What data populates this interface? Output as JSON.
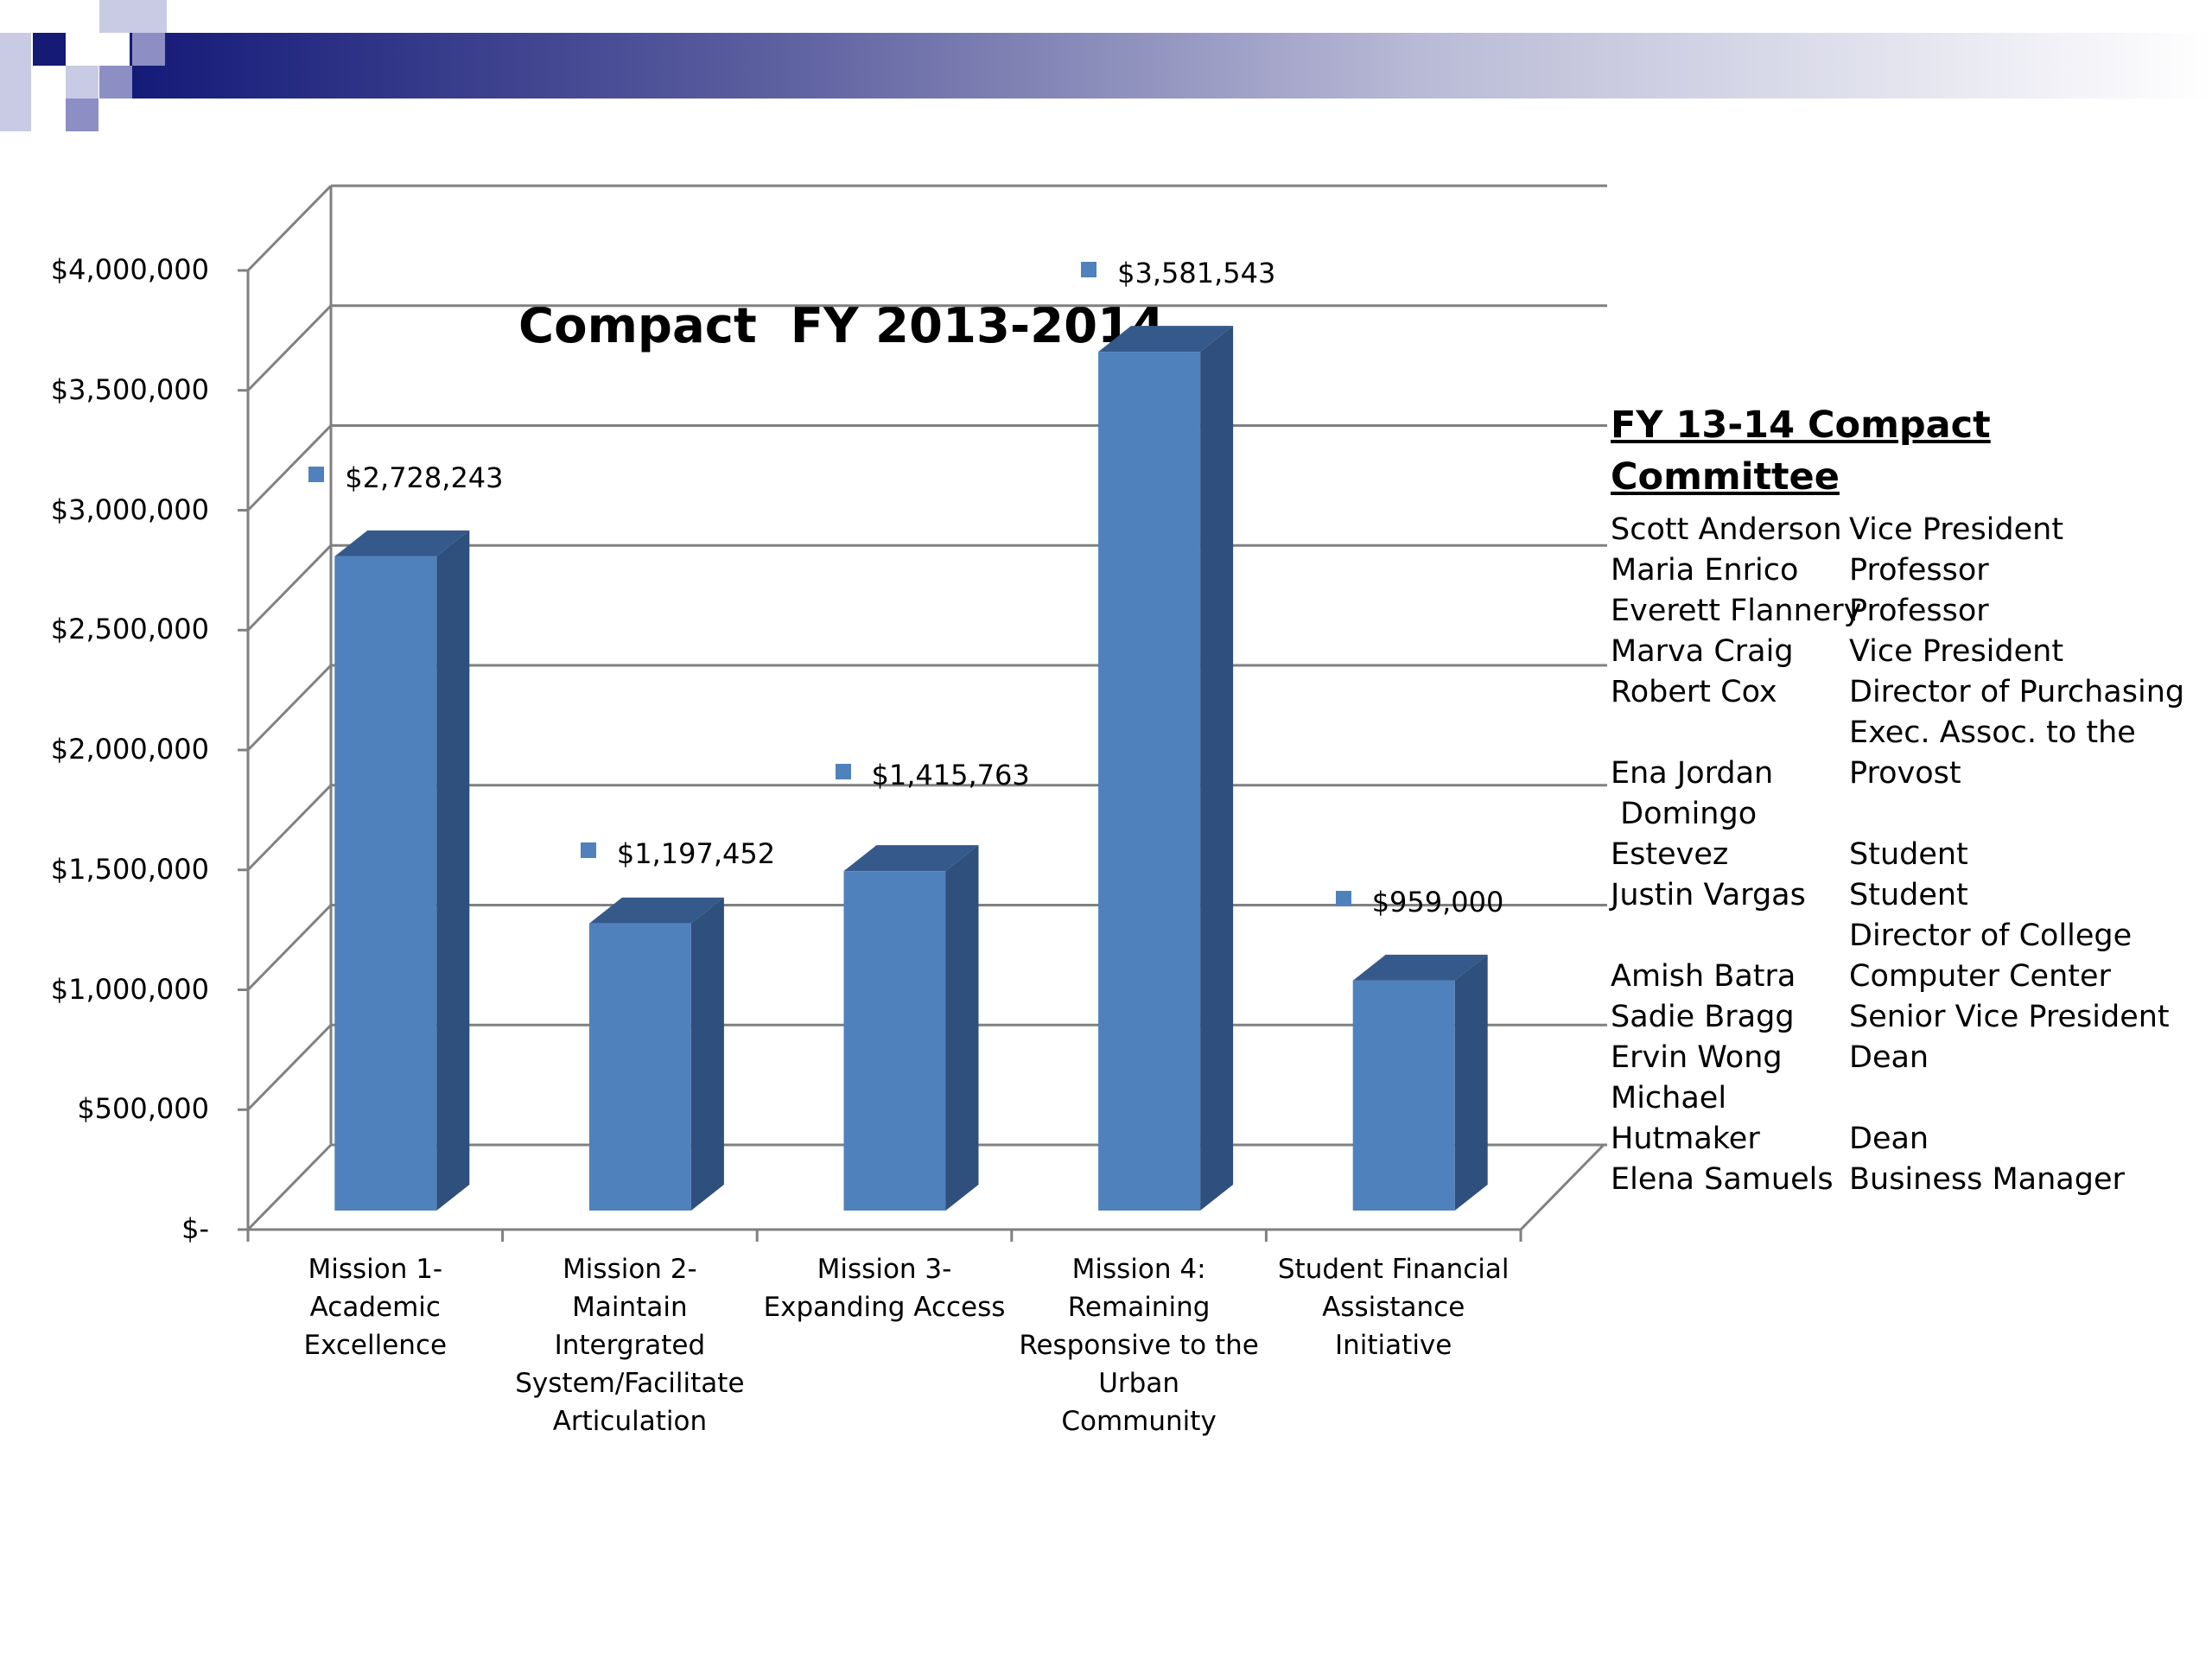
{
  "colors": {
    "banner_dark": "#141a78",
    "banner_light": "#ffffff",
    "square_dark": "#151a75",
    "square_mid": "#8c8ec4",
    "square_light": "#c9cae3",
    "bar_front": "#4f81bd",
    "bar_top": "#35598a",
    "bar_side": "#2f4f7c",
    "grid": "#808080"
  },
  "chart_data": {
    "type": "bar",
    "title": "Compact  FY 2013-2014",
    "categories": [
      "Mission 1- Academic Excellence",
      "Mission 2- Maintain Intergrated System/Facilitate Articulation",
      "Mission 3- Expanding Access",
      "Mission 4: Remaining Responsive to the Urban Community",
      "Student Financial Assistance Initiative"
    ],
    "category_lines": [
      [
        "Mission 1-",
        "Academic",
        "Excellence"
      ],
      [
        "Mission 2-",
        "Maintain",
        "Intergrated",
        "System/Facilitate",
        "Articulation"
      ],
      [
        "Mission 3-",
        "Expanding Access"
      ],
      [
        "Mission 4:",
        "Remaining",
        "Responsive to the",
        "Urban Community"
      ],
      [
        "Student Financial",
        "Assistance",
        "Initiative"
      ]
    ],
    "values": [
      2728243,
      1197452,
      1415763,
      3581543,
      959000
    ],
    "data_labels": [
      "$2,728,243",
      "$1,197,452",
      "$1,415,763",
      "$3,581,543",
      "$959,000"
    ],
    "yticks": [
      0,
      500000,
      1000000,
      1500000,
      2000000,
      2500000,
      3000000,
      3500000,
      4000000
    ],
    "ytick_labels": [
      "$-",
      "$500,000",
      "$1,000,000",
      "$1,500,000",
      "$2,000,000",
      "$2,500,000",
      "$3,000,000",
      "$3,500,000",
      "$4,000,000"
    ],
    "ylim": [
      0,
      4000000
    ],
    "xlabel": "",
    "ylabel": "",
    "grid": true,
    "style": "3d-clustered-column"
  },
  "committee": {
    "title": "FY 13-14 Compact Committee",
    "members": [
      {
        "name": "Scott Anderson",
        "role": "Vice President"
      },
      {
        "name": "Maria Enrico",
        "role": "Professor"
      },
      {
        "name": "Everett Flannery",
        "role": "Professor"
      },
      {
        "name": "Marva Craig",
        "role": "Vice President"
      },
      {
        "name": "Robert Cox",
        "role": "Director of Purchasing"
      },
      {
        "name": "",
        "role": "Exec. Assoc. to the"
      },
      {
        "name": "Ena Jordan",
        "role": "Provost"
      },
      {
        "name": " Domingo",
        "role": ""
      },
      {
        "name": "Estevez",
        "role": "Student"
      },
      {
        "name": "Justin Vargas",
        "role": "Student"
      },
      {
        "name": "",
        "role": "Director of College"
      },
      {
        "name": "Amish Batra",
        "role": "Computer Center"
      },
      {
        "name": "Sadie Bragg",
        "role": "Senior Vice President"
      },
      {
        "name": "Ervin Wong",
        "role": "Dean"
      },
      {
        "name": "Michael",
        "role": ""
      },
      {
        "name": "Hutmaker",
        "role": "Dean"
      },
      {
        "name": "Elena Samuels",
        "role": "Business Manager"
      }
    ]
  }
}
